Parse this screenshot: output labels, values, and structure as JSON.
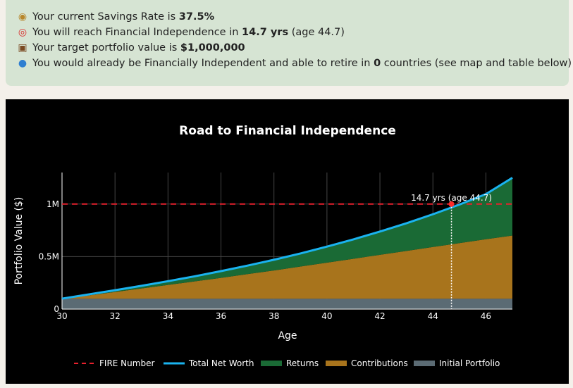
{
  "info": {
    "line1": {
      "icon": "money-bag-icon",
      "pre": "Your current Savings Rate is ",
      "value": "37.5%",
      "post": ""
    },
    "line2": {
      "icon": "target-icon",
      "pre": "You will reach Financial Independence in ",
      "value": "14.7 yrs",
      "post": " (age 44.7)"
    },
    "line3": {
      "icon": "briefcase-icon",
      "pre": "Your target portfolio value is ",
      "value": "$1,000,000",
      "post": ""
    },
    "line4": {
      "icon": "globe-icon",
      "pre": "You would already be Financially Independent and able to retire in ",
      "value": "0",
      "post": " countries (see map and table below)"
    }
  },
  "chart_data": {
    "type": "area",
    "title": "Road to Financial Independence",
    "xlabel": "Age",
    "ylabel": "Portfolio Value ($)",
    "xlim": [
      30,
      47
    ],
    "ylim": [
      0,
      1300000
    ],
    "x_ticks": [
      30,
      32,
      34,
      36,
      38,
      40,
      42,
      44,
      46
    ],
    "y_ticks": [
      {
        "value": 0,
        "label": "0"
      },
      {
        "value": 500000,
        "label": "0.5M"
      },
      {
        "value": 1000000,
        "label": "1M"
      }
    ],
    "grid": true,
    "legend_position": "bottom",
    "fire_number": 1000000,
    "fi_age": 44.7,
    "fi_annotation": "14.7 yrs (age 44.7)",
    "x": [
      30,
      31,
      32,
      33,
      34,
      35,
      36,
      37,
      38,
      39,
      40,
      41,
      42,
      43,
      44,
      45,
      46,
      47
    ],
    "series": [
      {
        "name": "FIRE Number",
        "color": "#e8212d",
        "values": [
          1000000,
          1000000,
          1000000,
          1000000,
          1000000,
          1000000,
          1000000,
          1000000,
          1000000,
          1000000,
          1000000,
          1000000,
          1000000,
          1000000,
          1000000,
          1000000,
          1000000,
          1000000
        ]
      },
      {
        "name": "Total Net Worth",
        "color": "#1ab3f0",
        "values": [
          100000,
          140000,
          180000,
          222000,
          266000,
          312000,
          362000,
          414000,
          470000,
          530000,
          595000,
          664000,
          738000,
          817000,
          903000,
          995000,
          1095000,
          1250000
        ]
      },
      {
        "name": "Returns",
        "color": "#1a6a35",
        "values": [
          0,
          5000,
          12000,
          20000,
          31000,
          43000,
          59000,
          76000,
          97000,
          120000,
          148000,
          180000,
          216000,
          258000,
          307000,
          362000,
          425000,
          550000
        ]
      },
      {
        "name": "Contributions",
        "color": "#a8741c",
        "values": [
          0,
          30000,
          63000,
          97000,
          130000,
          164000,
          197000,
          233000,
          268000,
          305000,
          342000,
          379000,
          417000,
          454000,
          491000,
          528000,
          565000,
          600000
        ]
      },
      {
        "name": "Initial Portfolio",
        "color": "#5b6b74",
        "values": [
          100000,
          100000,
          100000,
          100000,
          100000,
          100000,
          100000,
          100000,
          100000,
          100000,
          100000,
          100000,
          100000,
          100000,
          100000,
          100000,
          100000,
          100000
        ]
      }
    ]
  }
}
